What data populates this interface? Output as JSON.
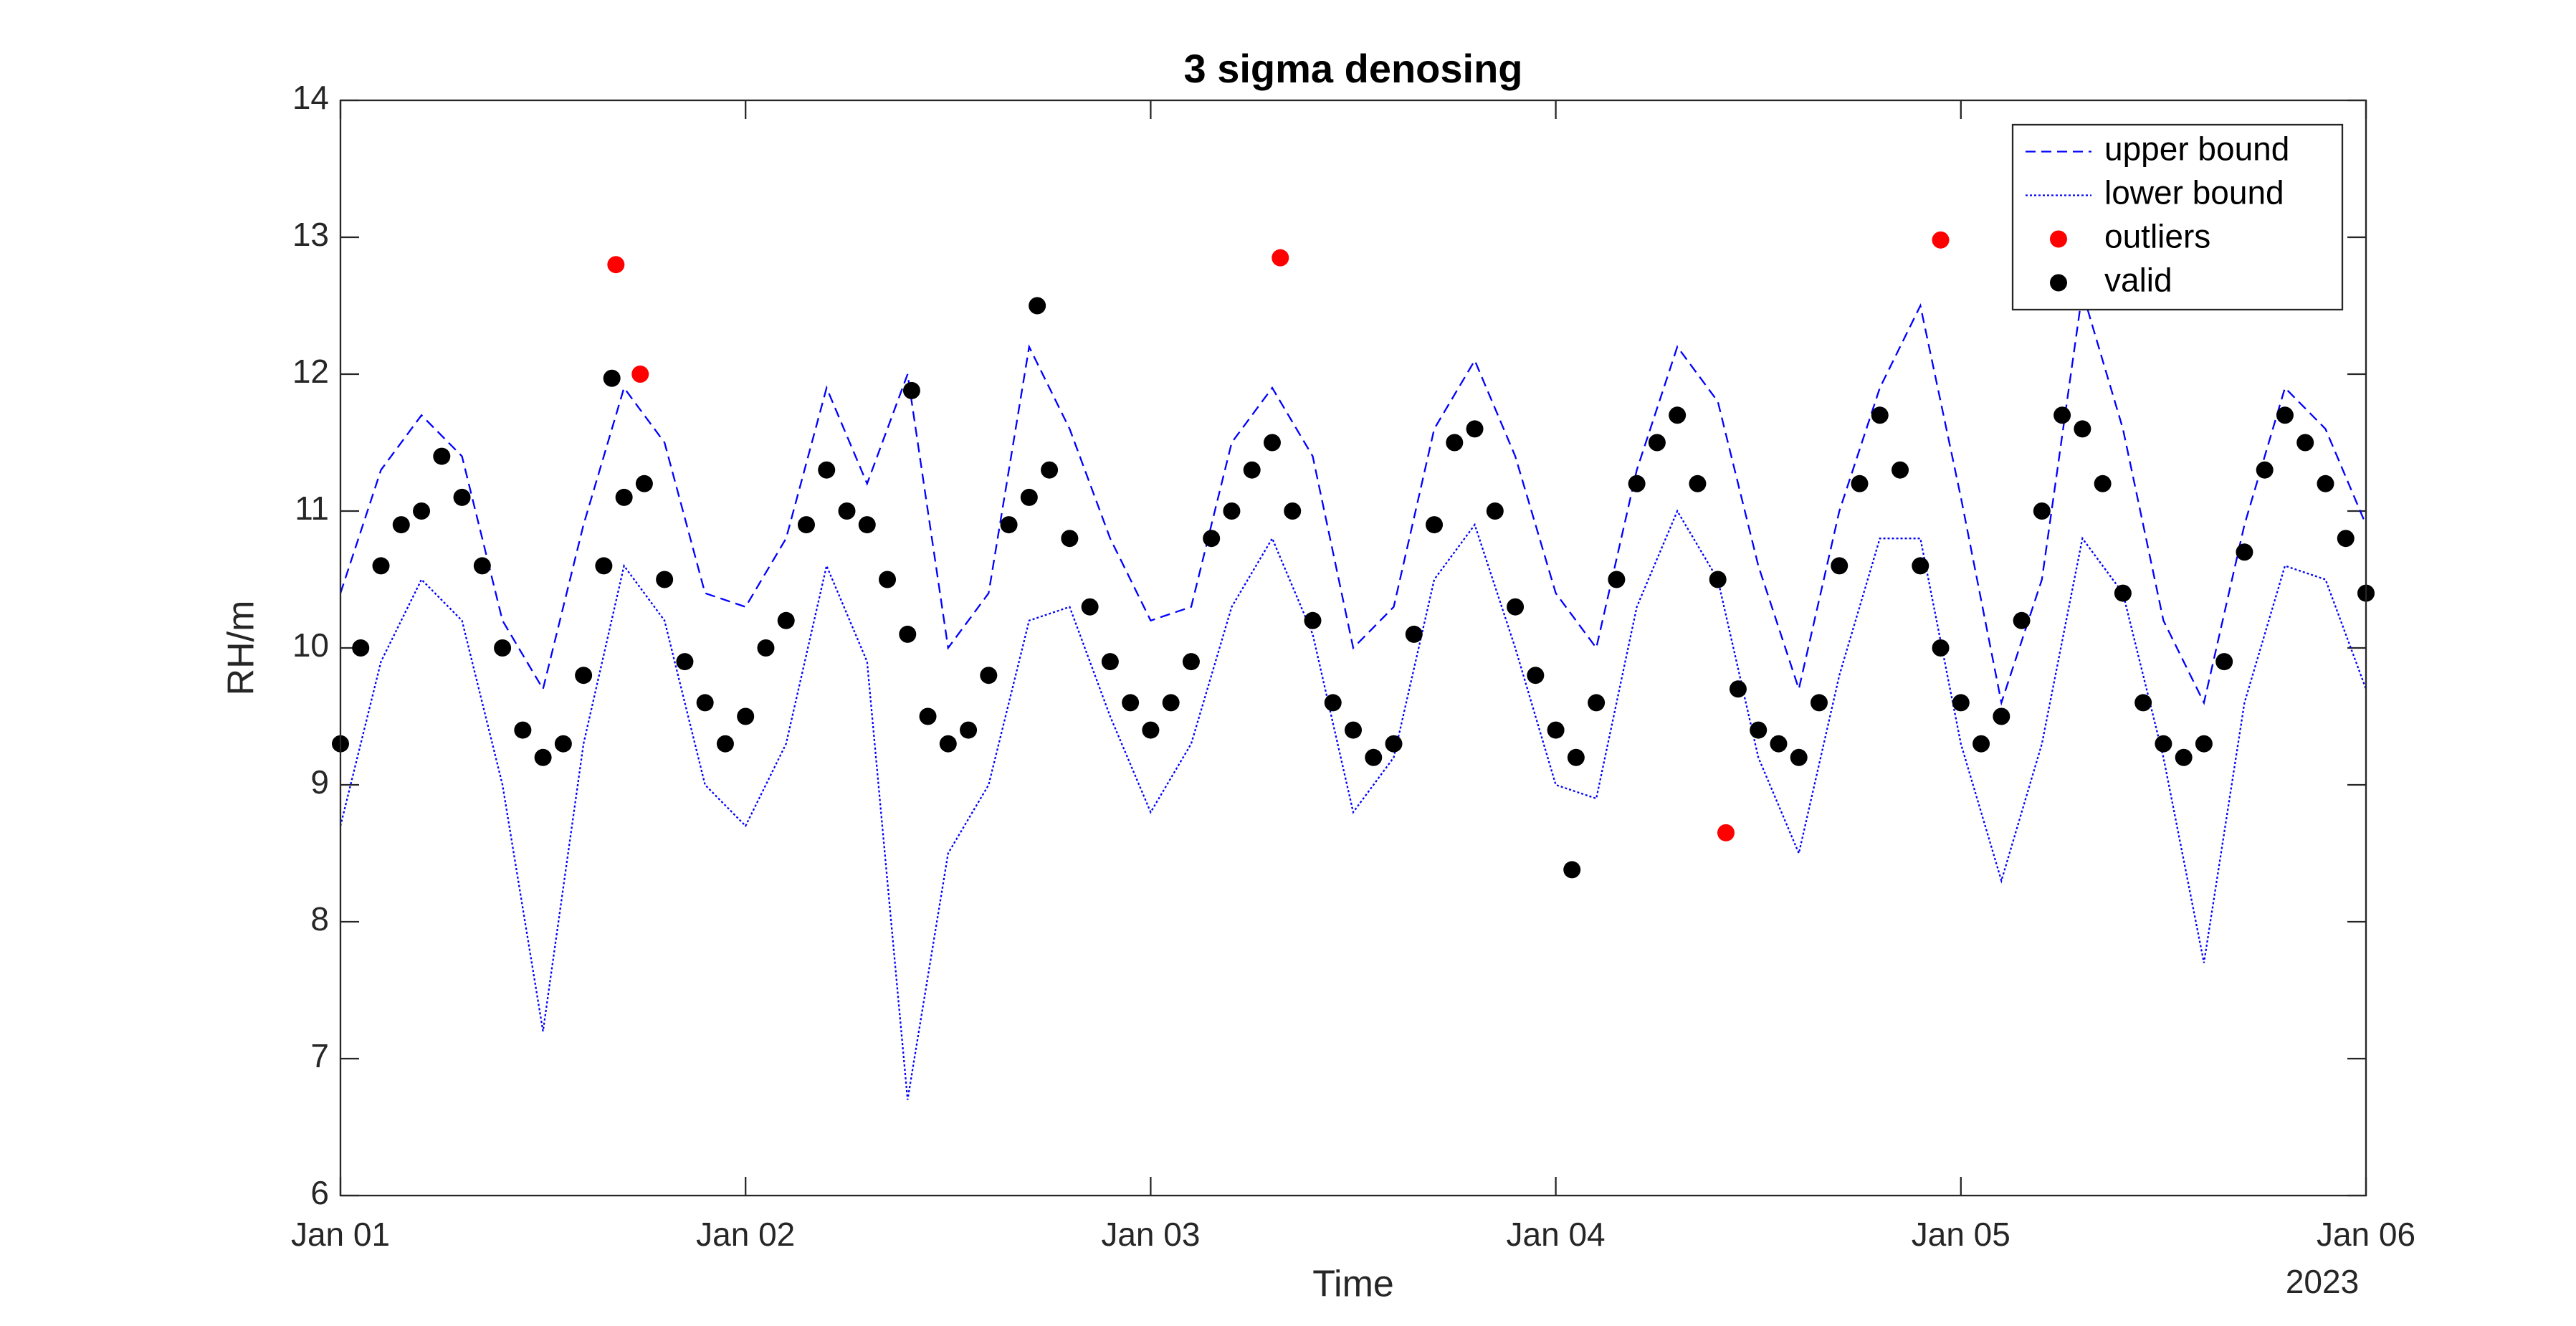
{
  "chart_data": {
    "type": "line_scatter",
    "title": "3 sigma denosing",
    "xlabel": "Time",
    "ylabel": "RH/m",
    "x_year_label": "2023",
    "xlim": [
      0,
      5
    ],
    "ylim": [
      6,
      14
    ],
    "xticks": [
      {
        "value": 0,
        "label": "Jan 01"
      },
      {
        "value": 1,
        "label": "Jan 02"
      },
      {
        "value": 2,
        "label": "Jan 03"
      },
      {
        "value": 3,
        "label": "Jan 04"
      },
      {
        "value": 4,
        "label": "Jan 05"
      },
      {
        "value": 5,
        "label": "Jan 06"
      }
    ],
    "yticks": [
      6,
      7,
      8,
      9,
      10,
      11,
      12,
      13,
      14
    ],
    "legend": "northeast",
    "series": [
      {
        "name": "upper bound",
        "color": "#0000ff",
        "style": "dashed",
        "x": [
          0,
          0.1,
          0.2,
          0.3,
          0.4,
          0.5,
          0.6,
          0.7,
          0.8,
          0.9,
          1,
          1.1,
          1.2,
          1.3,
          1.4,
          1.5,
          1.6,
          1.7,
          1.8,
          1.9,
          2,
          2.1,
          2.2,
          2.3,
          2.4,
          2.5,
          2.6,
          2.7,
          2.8,
          2.9,
          3,
          3.1,
          3.2,
          3.3,
          3.4,
          3.5,
          3.6,
          3.7,
          3.8,
          3.9,
          4,
          4.1,
          4.2,
          4.3,
          4.4,
          4.5,
          4.6,
          4.7,
          4.8,
          4.9,
          5
        ],
        "values": [
          10.4,
          11.3,
          11.7,
          11.4,
          10.2,
          9.7,
          10.9,
          11.9,
          11.5,
          10.4,
          10.3,
          10.8,
          11.9,
          11.2,
          12.0,
          10.0,
          10.4,
          12.2,
          11.6,
          10.8,
          10.2,
          10.3,
          11.5,
          11.9,
          11.4,
          10.0,
          10.3,
          11.6,
          12.1,
          11.4,
          10.4,
          10.0,
          11.3,
          12.2,
          11.8,
          10.6,
          9.7,
          11.0,
          11.9,
          12.5,
          11.1,
          9.6,
          10.5,
          12.6,
          11.6,
          10.2,
          9.6,
          10.9,
          11.9,
          11.6,
          10.9
        ]
      },
      {
        "name": "lower bound",
        "color": "#0000ff",
        "style": "dotted",
        "x": [
          0,
          0.1,
          0.2,
          0.3,
          0.4,
          0.5,
          0.6,
          0.7,
          0.8,
          0.9,
          1,
          1.1,
          1.2,
          1.3,
          1.4,
          1.5,
          1.6,
          1.7,
          1.8,
          1.9,
          2,
          2.1,
          2.2,
          2.3,
          2.4,
          2.5,
          2.6,
          2.7,
          2.8,
          2.9,
          3,
          3.1,
          3.2,
          3.3,
          3.4,
          3.5,
          3.6,
          3.7,
          3.8,
          3.9,
          4,
          4.1,
          4.2,
          4.3,
          4.4,
          4.5,
          4.6,
          4.7,
          4.8,
          4.9,
          5
        ],
        "values": [
          8.7,
          9.9,
          10.5,
          10.2,
          9.0,
          7.2,
          9.3,
          10.6,
          10.2,
          9.0,
          8.7,
          9.3,
          10.6,
          9.9,
          6.7,
          8.5,
          9.0,
          10.2,
          10.3,
          9.5,
          8.8,
          9.3,
          10.3,
          10.8,
          10.1,
          8.8,
          9.2,
          10.5,
          10.9,
          10.0,
          9.0,
          8.9,
          10.3,
          11.0,
          10.5,
          9.2,
          8.5,
          9.8,
          10.8,
          10.8,
          9.3,
          8.3,
          9.3,
          10.8,
          10.4,
          9.2,
          7.7,
          9.6,
          10.6,
          10.5,
          9.7
        ]
      },
      {
        "name": "outliers",
        "color": "#ff0000",
        "style": "markers",
        "x": [
          0.68,
          0.74,
          2.32,
          3.42,
          3.95
        ],
        "values": [
          12.8,
          12.0,
          12.85,
          8.65,
          12.98
        ]
      },
      {
        "name": "valid",
        "color": "#000000",
        "style": "markers",
        "x": [
          0,
          0.05,
          0.1,
          0.15,
          0.2,
          0.25,
          0.3,
          0.35,
          0.4,
          0.45,
          0.5,
          0.55,
          0.6,
          0.65,
          0.7,
          0.75,
          0.8,
          0.85,
          0.9,
          0.95,
          1,
          1.05,
          1.1,
          1.15,
          1.2,
          1.25,
          1.3,
          1.35,
          1.4,
          1.45,
          1.5,
          1.55,
          1.6,
          1.65,
          1.7,
          1.75,
          1.8,
          1.85,
          1.9,
          1.95,
          2,
          2.05,
          2.1,
          2.15,
          2.2,
          2.25,
          2.3,
          2.35,
          2.4,
          2.45,
          2.5,
          2.55,
          2.6,
          2.65,
          2.7,
          2.75,
          2.8,
          2.85,
          2.9,
          2.95,
          3,
          3.05,
          3.1,
          3.15,
          3.2,
          3.25,
          3.3,
          3.35,
          3.4,
          3.45,
          3.5,
          3.55,
          3.6,
          3.65,
          3.7,
          3.75,
          3.8,
          3.85,
          3.9,
          3.95,
          4,
          4.05,
          4.1,
          4.15,
          4.2,
          4.25,
          4.3,
          4.35,
          4.4,
          4.45,
          4.5,
          4.55,
          4.6,
          4.65,
          4.7,
          4.75,
          4.8,
          4.85,
          4.9,
          4.95,
          5,
          0.67,
          1.72,
          1.41,
          3.04
        ],
        "values": [
          9.3,
          10.0,
          10.6,
          10.9,
          11.0,
          11.4,
          11.1,
          10.6,
          10.0,
          9.4,
          9.2,
          9.3,
          9.8,
          10.6,
          11.1,
          11.2,
          10.5,
          9.9,
          9.6,
          9.3,
          9.5,
          10.0,
          10.2,
          10.9,
          11.3,
          11.0,
          10.9,
          10.5,
          10.1,
          9.5,
          9.3,
          9.4,
          9.8,
          10.9,
          11.1,
          11.3,
          10.8,
          10.3,
          9.9,
          9.6,
          9.4,
          9.6,
          9.9,
          10.8,
          11.0,
          11.3,
          11.5,
          11.0,
          10.2,
          9.6,
          9.4,
          9.2,
          9.3,
          10.1,
          10.9,
          11.5,
          11.6,
          11.0,
          10.3,
          9.8,
          9.4,
          9.2,
          9.6,
          10.5,
          11.2,
          11.5,
          11.7,
          11.2,
          10.5,
          9.7,
          9.4,
          9.3,
          9.2,
          9.6,
          10.6,
          11.2,
          11.7,
          11.3,
          10.6,
          10.0,
          9.6,
          9.3,
          9.5,
          10.2,
          11.0,
          11.7,
          11.6,
          11.2,
          10.4,
          9.6,
          9.3,
          9.2,
          9.3,
          9.9,
          10.7,
          11.3,
          11.7,
          11.5,
          11.2,
          10.8,
          10.4,
          11.97,
          12.5,
          11.88,
          8.38
        ]
      }
    ]
  }
}
